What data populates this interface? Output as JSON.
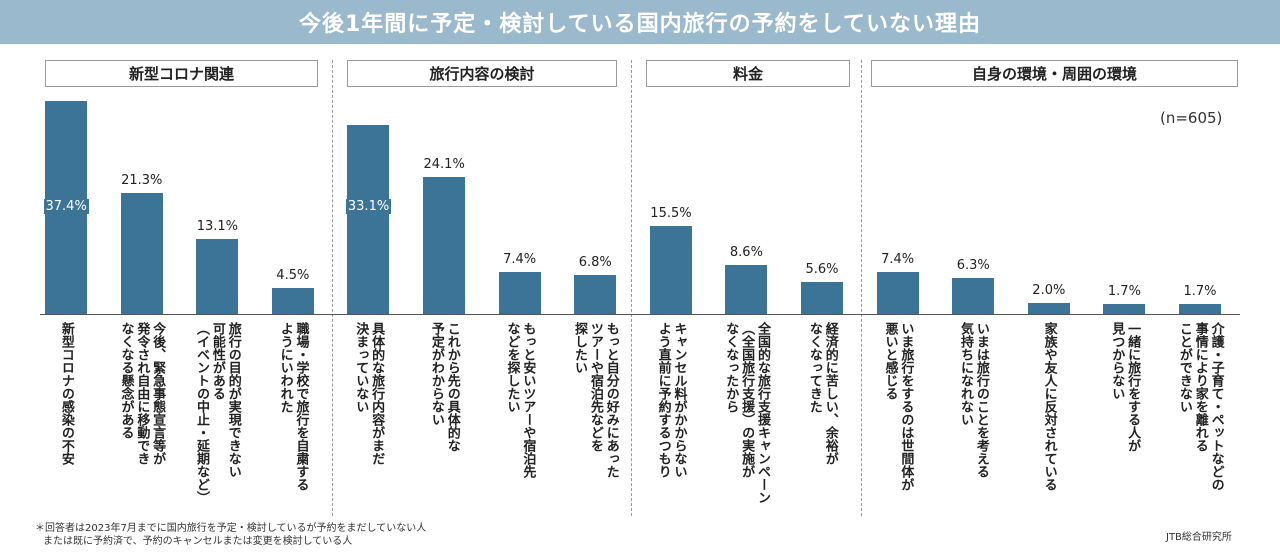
{
  "title": "今後1年間に予定・検討している国内旅行の予約をしていない理由",
  "n_label": "(n=605)",
  "groups": [
    {
      "label": "新型コロナ関連"
    },
    {
      "label": "旅行内容の検討"
    },
    {
      "label": "料金"
    },
    {
      "label": "自身の環境・周囲の環境"
    }
  ],
  "footnote": {
    "line1": "＊回答者は2023年7月までに国内旅行を予定・検討しているが予約をまだしていない人",
    "line2": "または既に予約済で、予約のキャンセルまたは変更を検討している人"
  },
  "source": "JTB総合研究所",
  "colors": {
    "bar": "#3b7497",
    "title_bar": "#9bb9cc"
  },
  "chart_data": {
    "type": "bar",
    "ylim": [
      0,
      40
    ],
    "value_suffix": "%",
    "categories": [
      "新型コロナの感染の不安",
      "今後、緊急事態宣言等が\n発令され自由に移動でき\nなくなる懸念がある",
      "旅行の目的が実現できない\n可能性がある\n（イベントの中止・延期など）",
      "職場・学校で旅行を自粛する\nようにいわれた",
      "具体的な旅行内容がまだ\n決まっていない",
      "これから先の具体的な\n予定がわからない",
      "もっと安いツアーや宿泊先\nなどを探したい",
      "もっと自分の好みにあった\nツアーや宿泊先などを\n探したい",
      "キャンセル料がかからない\nよう直前に予約するつもり",
      "全国的な旅行支援キャンペーン\n（全国旅行支援）の実施が\nなくなったから",
      "経済的に苦しい、余裕が\nなくなってきた",
      "いま旅行をするのは世間体が\n悪いと感じる",
      "いまは旅行のことを考える\n気持ちになれない",
      "家族や友人に反対されている",
      "一緒に旅行をする人が\n見つからない",
      "介護・子育て・ペットなどの\n事情により家を離れる\nことができない"
    ],
    "values": [
      37.4,
      21.3,
      13.1,
      4.5,
      33.1,
      24.1,
      7.4,
      6.8,
      15.5,
      8.6,
      5.6,
      7.4,
      6.3,
      2.0,
      1.7,
      1.7
    ],
    "labels": [
      "37.4%",
      "21.3%",
      "13.1%",
      "4.5%",
      "33.1%",
      "24.1%",
      "7.4%",
      "6.8%",
      "15.5%",
      "8.6%",
      "5.6%",
      "7.4%",
      "6.3%",
      "2.0%",
      "1.7%",
      "1.7%"
    ]
  }
}
